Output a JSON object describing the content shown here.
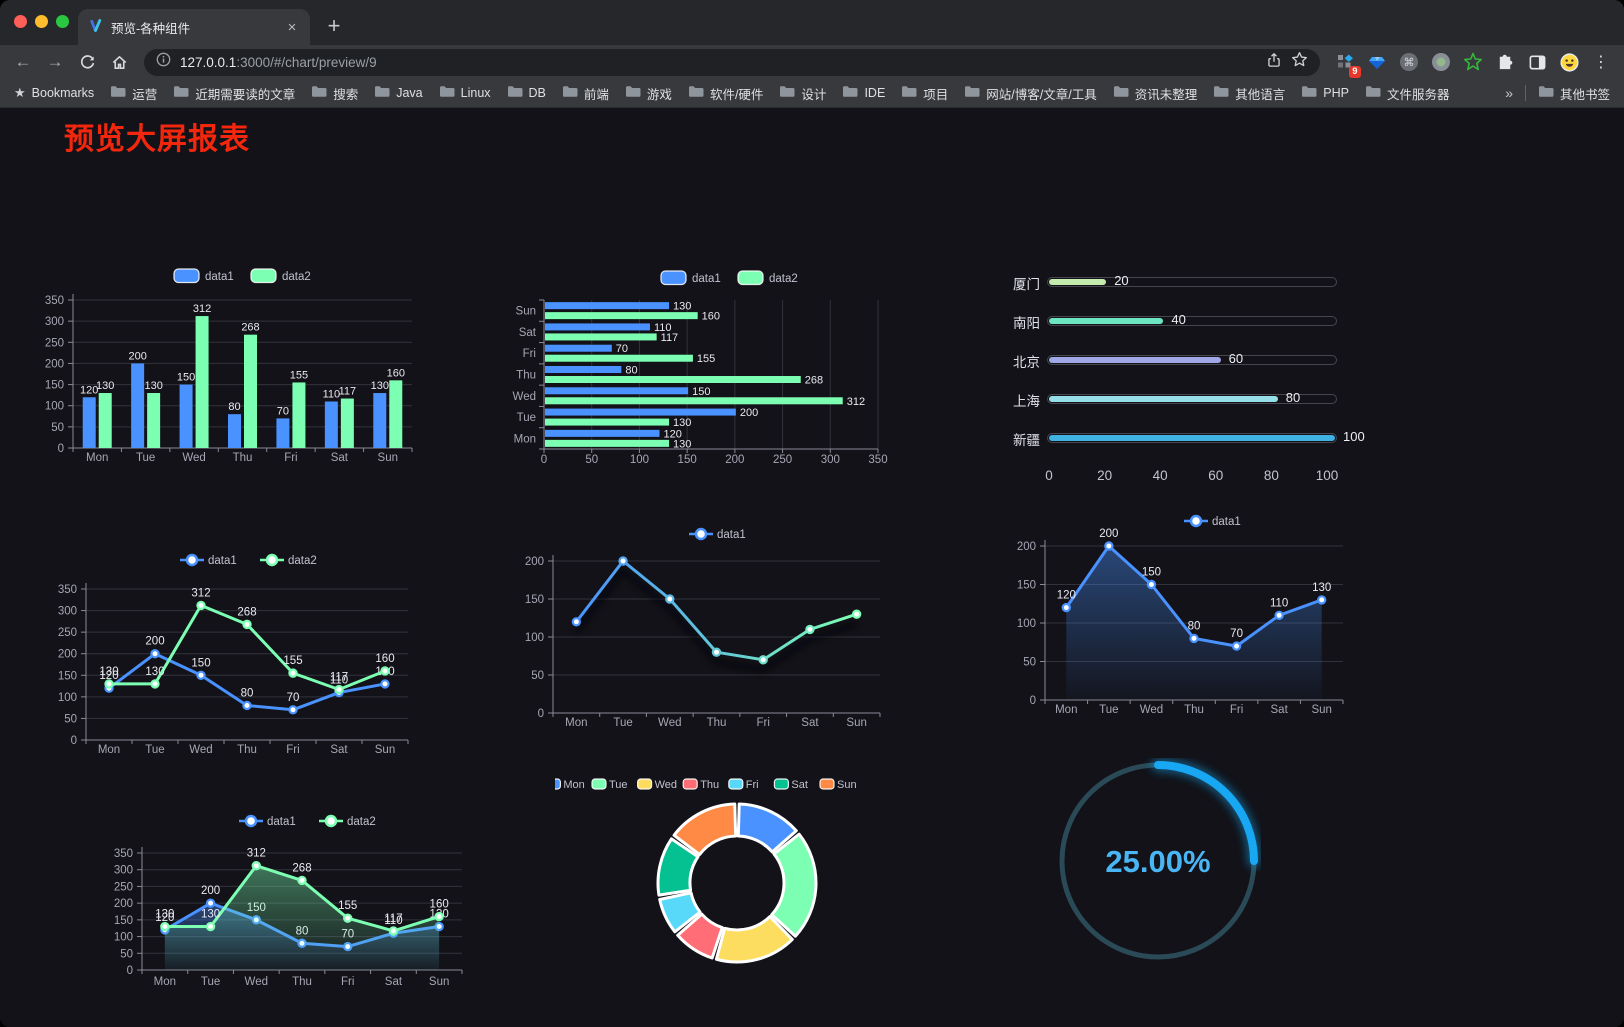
{
  "browser": {
    "tab_title": "预览-各种组件",
    "close_tab_label": "×",
    "new_tab_label": "+",
    "url_host": "127.0.0.1",
    "url_rest": ":3000/#/chart/preview/9",
    "extension_badge": "9",
    "icons": {
      "back": "←",
      "forward": "→",
      "menu": "⋮",
      "bookmarks_star": "★",
      "command": "⌘"
    },
    "bookmarks_label": "Bookmarks",
    "bookmarks": [
      "运营",
      "近期需要读的文章",
      "搜索",
      "Java",
      "Linux",
      "DB",
      "前端",
      "游戏",
      "软件/硬件",
      "设计",
      "IDE",
      "项目",
      "网站/博客/文章/工具",
      "资讯未整理",
      "其他语言",
      "PHP",
      "文件服务器"
    ],
    "bookmarks_overflow": "»",
    "other_bookmarks": "其他书签"
  },
  "page": {
    "title": "预览大屏报表",
    "title_color": "#f3270e",
    "background": "#121218"
  },
  "chart_data": [
    {
      "id": "grouped-bar",
      "type": "bar",
      "legend_position": "top",
      "categories": [
        "Mon",
        "Tue",
        "Wed",
        "Thu",
        "Fri",
        "Sat",
        "Sun"
      ],
      "series": [
        {
          "name": "data1",
          "color": "#4992ff",
          "values": [
            120,
            200,
            150,
            80,
            70,
            110,
            130
          ]
        },
        {
          "name": "data2",
          "color": "#7cffb2",
          "values": [
            130,
            130,
            312,
            268,
            155,
            117,
            160
          ]
        }
      ],
      "ylim": [
        0,
        350
      ],
      "yticks": [
        0,
        50,
        100,
        150,
        200,
        250,
        300,
        350
      ],
      "value_labels": true,
      "grid": true
    },
    {
      "id": "grouped-horizontal-bar",
      "type": "bar-horizontal",
      "legend_position": "top",
      "categories": [
        "Mon",
        "Tue",
        "Wed",
        "Thu",
        "Fri",
        "Sat",
        "Sun"
      ],
      "display_order": "Sun-on-top",
      "series": [
        {
          "name": "data1",
          "color": "#4992ff",
          "values": [
            120,
            200,
            150,
            80,
            70,
            110,
            130
          ]
        },
        {
          "name": "data2",
          "color": "#7cffb2",
          "values": [
            130,
            130,
            312,
            268,
            155,
            117,
            160
          ]
        }
      ],
      "xlim": [
        0,
        350
      ],
      "xticks": [
        0,
        50,
        100,
        150,
        200,
        250,
        300,
        350
      ],
      "value_labels": true,
      "grid": true
    },
    {
      "id": "city-progress-bars",
      "type": "progress-bars",
      "rows": [
        {
          "label": "厦门",
          "value": 20,
          "color": "#c4ebad"
        },
        {
          "label": "南阳",
          "value": 40,
          "color": "#6be6c1"
        },
        {
          "label": "北京",
          "value": 60,
          "color": "#a0a7e6"
        },
        {
          "label": "上海",
          "value": 80,
          "color": "#96dee8"
        },
        {
          "label": "新疆",
          "value": 100,
          "color": "#3fb1e3"
        }
      ],
      "xlim": [
        0,
        100
      ],
      "xticks": [
        0,
        20,
        40,
        60,
        80,
        100
      ]
    },
    {
      "id": "two-lines",
      "type": "line",
      "legend_position": "top",
      "categories": [
        "Mon",
        "Tue",
        "Wed",
        "Thu",
        "Fri",
        "Sat",
        "Sun"
      ],
      "series": [
        {
          "name": "data1",
          "color": "#4992ff",
          "values": [
            120,
            200,
            150,
            80,
            70,
            110,
            130
          ]
        },
        {
          "name": "data2",
          "color": "#7cffb2",
          "values": [
            130,
            130,
            312,
            268,
            155,
            117,
            160
          ]
        }
      ],
      "ylim": [
        0,
        350
      ],
      "yticks": [
        0,
        50,
        100,
        150,
        200,
        250,
        300,
        350
      ],
      "value_labels": true,
      "grid": true
    },
    {
      "id": "gradient-line",
      "type": "line",
      "legend_position": "top",
      "categories": [
        "Mon",
        "Tue",
        "Wed",
        "Thu",
        "Fri",
        "Sat",
        "Sun"
      ],
      "series": [
        {
          "name": "data1",
          "color": "#4992ff",
          "color_gradient": [
            "#4992ff",
            "#7cffb2"
          ],
          "shadow": true,
          "values": [
            120,
            200,
            150,
            80,
            70,
            110,
            130
          ]
        }
      ],
      "ylim": [
        0,
        200
      ],
      "yticks": [
        0,
        50,
        100,
        150,
        200
      ],
      "value_labels": false,
      "grid": true
    },
    {
      "id": "area-line",
      "type": "line",
      "legend_position": "top",
      "categories": [
        "Mon",
        "Tue",
        "Wed",
        "Thu",
        "Fri",
        "Sat",
        "Sun"
      ],
      "series": [
        {
          "name": "data1",
          "color": "#4992ff",
          "area": true,
          "values": [
            120,
            200,
            150,
            80,
            70,
            110,
            130
          ]
        }
      ],
      "ylim": [
        0,
        200
      ],
      "yticks": [
        0,
        50,
        100,
        150,
        200
      ],
      "value_labels": true,
      "grid": true
    },
    {
      "id": "two-area-lines",
      "type": "line",
      "legend_position": "top",
      "categories": [
        "Mon",
        "Tue",
        "Wed",
        "Thu",
        "Fri",
        "Sat",
        "Sun"
      ],
      "series": [
        {
          "name": "data1",
          "color": "#4992ff",
          "area": true,
          "values": [
            120,
            200,
            150,
            80,
            70,
            110,
            130
          ]
        },
        {
          "name": "data2",
          "color": "#7cffb2",
          "area": true,
          "values": [
            130,
            130,
            312,
            268,
            155,
            117,
            160
          ]
        }
      ],
      "ylim": [
        0,
        350
      ],
      "yticks": [
        0,
        50,
        100,
        150,
        200,
        250,
        300,
        350
      ],
      "value_labels": true,
      "grid": true
    },
    {
      "id": "weekday-donut",
      "type": "pie",
      "legend_position": "top",
      "categories": [
        "Mon",
        "Tue",
        "Wed",
        "Thu",
        "Fri",
        "Sat",
        "Sun"
      ],
      "values": [
        120,
        200,
        150,
        80,
        70,
        110,
        130
      ],
      "colors": [
        "#4992ff",
        "#7cffb2",
        "#fddd60",
        "#ff6e76",
        "#58d9f9",
        "#05c091",
        "#ff8a45"
      ],
      "inner_radius_ratio": 0.59,
      "segment_border_color": "#ffffff"
    },
    {
      "id": "percent-gauge",
      "type": "gauge",
      "value": 25,
      "display": "25.00%",
      "color": "#18a7f2",
      "track_color": "#2b4a57",
      "text_color": "#4ab5f4"
    }
  ]
}
